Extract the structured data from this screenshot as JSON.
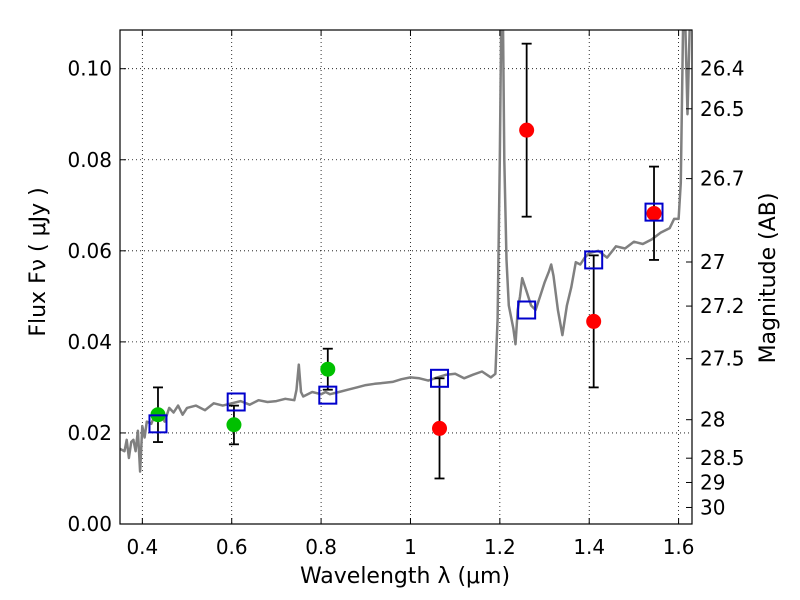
{
  "chart_data": {
    "type": "scatter",
    "xlabel": "Wavelength  λ (μm)",
    "ylabel": "Flux  Fν  ( μJy )",
    "ylabel_right": "Magnitude (AB)",
    "xlim": [
      0.35,
      1.63
    ],
    "ylim": [
      0.0,
      0.1085
    ],
    "x_ticks": [
      0.4,
      0.6,
      0.8,
      1.0,
      1.2,
      1.4,
      1.6
    ],
    "x_tick_labels": [
      "0.4",
      "0.6",
      "0.8",
      "1",
      "1.2",
      "1.4",
      "1.6"
    ],
    "y_ticks": [
      0.0,
      0.02,
      0.04,
      0.06,
      0.08,
      0.1
    ],
    "y_tick_labels": [
      "0.00",
      "0.02",
      "0.04",
      "0.06",
      "0.08",
      "0.10"
    ],
    "mag_ticks": [
      26.4,
      26.5,
      26.7,
      27,
      27.2,
      27.5,
      28,
      28.5,
      29,
      30
    ],
    "mag_tick_labels": [
      "26.4",
      "26.5",
      "26.7",
      "27",
      "27.2",
      "27.5",
      "28",
      "28.5",
      "29",
      "30"
    ],
    "grid": true,
    "colors": {
      "spectrum": "#808080",
      "green_points": "#00c000",
      "red_points": "#ff0000",
      "model_boxes": "#0000cc",
      "errorbar": "#000000"
    },
    "spectrum": [
      [
        0.35,
        0.0165
      ],
      [
        0.36,
        0.016
      ],
      [
        0.365,
        0.0185
      ],
      [
        0.37,
        0.0145
      ],
      [
        0.375,
        0.018
      ],
      [
        0.38,
        0.0185
      ],
      [
        0.385,
        0.016
      ],
      [
        0.39,
        0.0205
      ],
      [
        0.395,
        0.0115
      ],
      [
        0.4,
        0.0215
      ],
      [
        0.405,
        0.019
      ],
      [
        0.41,
        0.0225
      ],
      [
        0.42,
        0.022
      ],
      [
        0.43,
        0.0245
      ],
      [
        0.44,
        0.024
      ],
      [
        0.45,
        0.0225
      ],
      [
        0.46,
        0.0255
      ],
      [
        0.47,
        0.0245
      ],
      [
        0.48,
        0.026
      ],
      [
        0.49,
        0.024
      ],
      [
        0.5,
        0.0255
      ],
      [
        0.52,
        0.026
      ],
      [
        0.54,
        0.025
      ],
      [
        0.56,
        0.0265
      ],
      [
        0.58,
        0.026
      ],
      [
        0.6,
        0.0265
      ],
      [
        0.62,
        0.027
      ],
      [
        0.64,
        0.0262
      ],
      [
        0.66,
        0.0272
      ],
      [
        0.68,
        0.0268
      ],
      [
        0.7,
        0.027
      ],
      [
        0.72,
        0.0275
      ],
      [
        0.74,
        0.0272
      ],
      [
        0.745,
        0.0295
      ],
      [
        0.75,
        0.035
      ],
      [
        0.755,
        0.029
      ],
      [
        0.76,
        0.028
      ],
      [
        0.78,
        0.029
      ],
      [
        0.8,
        0.0285
      ],
      [
        0.81,
        0.029
      ],
      [
        0.82,
        0.0285
      ],
      [
        0.84,
        0.029
      ],
      [
        0.86,
        0.0295
      ],
      [
        0.88,
        0.03
      ],
      [
        0.9,
        0.0305
      ],
      [
        0.92,
        0.0308
      ],
      [
        0.94,
        0.031
      ],
      [
        0.96,
        0.0312
      ],
      [
        0.98,
        0.0318
      ],
      [
        1.0,
        0.0322
      ],
      [
        1.02,
        0.032
      ],
      [
        1.04,
        0.0315
      ],
      [
        1.06,
        0.0322
      ],
      [
        1.08,
        0.0328
      ],
      [
        1.1,
        0.033
      ],
      [
        1.12,
        0.032
      ],
      [
        1.14,
        0.0328
      ],
      [
        1.16,
        0.0335
      ],
      [
        1.18,
        0.0322
      ],
      [
        1.19,
        0.033
      ],
      [
        1.195,
        0.045
      ],
      [
        1.2,
        0.08
      ],
      [
        1.203,
        0.11
      ],
      [
        1.207,
        0.11
      ],
      [
        1.21,
        0.08
      ],
      [
        1.215,
        0.058
      ],
      [
        1.22,
        0.048
      ],
      [
        1.23,
        0.043
      ],
      [
        1.235,
        0.0395
      ],
      [
        1.24,
        0.047
      ],
      [
        1.245,
        0.05
      ],
      [
        1.25,
        0.054
      ],
      [
        1.26,
        0.051
      ],
      [
        1.27,
        0.048
      ],
      [
        1.28,
        0.047
      ],
      [
        1.29,
        0.05
      ],
      [
        1.3,
        0.053
      ],
      [
        1.31,
        0.0555
      ],
      [
        1.315,
        0.057
      ],
      [
        1.32,
        0.0545
      ],
      [
        1.33,
        0.047
      ],
      [
        1.34,
        0.0415
      ],
      [
        1.35,
        0.048
      ],
      [
        1.36,
        0.052
      ],
      [
        1.37,
        0.0575
      ],
      [
        1.38,
        0.057
      ],
      [
        1.39,
        0.0585
      ],
      [
        1.4,
        0.0595
      ],
      [
        1.42,
        0.06
      ],
      [
        1.44,
        0.0585
      ],
      [
        1.46,
        0.061
      ],
      [
        1.48,
        0.0605
      ],
      [
        1.5,
        0.062
      ],
      [
        1.52,
        0.0615
      ],
      [
        1.54,
        0.0625
      ],
      [
        1.56,
        0.064
      ],
      [
        1.58,
        0.065
      ],
      [
        1.59,
        0.067
      ],
      [
        1.6,
        0.067
      ],
      [
        1.605,
        0.075
      ],
      [
        1.61,
        0.11
      ],
      [
        1.615,
        0.11
      ],
      [
        1.62,
        0.09
      ],
      [
        1.625,
        0.11
      ],
      [
        1.63,
        0.11
      ]
    ],
    "points": [
      {
        "x": 0.435,
        "y": 0.024,
        "err_lo": 0.018,
        "err_hi": 0.03,
        "color": "green"
      },
      {
        "x": 0.605,
        "y": 0.0218,
        "err_lo": 0.0175,
        "err_hi": 0.026,
        "color": "green"
      },
      {
        "x": 0.815,
        "y": 0.034,
        "err_lo": 0.0295,
        "err_hi": 0.0385,
        "color": "green"
      },
      {
        "x": 1.065,
        "y": 0.021,
        "err_lo": 0.01,
        "err_hi": 0.032,
        "color": "red"
      },
      {
        "x": 1.26,
        "y": 0.0865,
        "err_lo": 0.0675,
        "err_hi": 0.1055,
        "color": "red"
      },
      {
        "x": 1.41,
        "y": 0.0445,
        "err_lo": 0.03,
        "err_hi": 0.059,
        "color": "red"
      },
      {
        "x": 1.545,
        "y": 0.0682,
        "err_lo": 0.058,
        "err_hi": 0.0785,
        "color": "red"
      }
    ],
    "model_points": [
      {
        "x": 0.435,
        "y": 0.022
      },
      {
        "x": 0.61,
        "y": 0.0268
      },
      {
        "x": 0.815,
        "y": 0.0283
      },
      {
        "x": 1.065,
        "y": 0.032
      },
      {
        "x": 1.26,
        "y": 0.047
      },
      {
        "x": 1.41,
        "y": 0.058
      },
      {
        "x": 1.545,
        "y": 0.0685
      }
    ]
  }
}
